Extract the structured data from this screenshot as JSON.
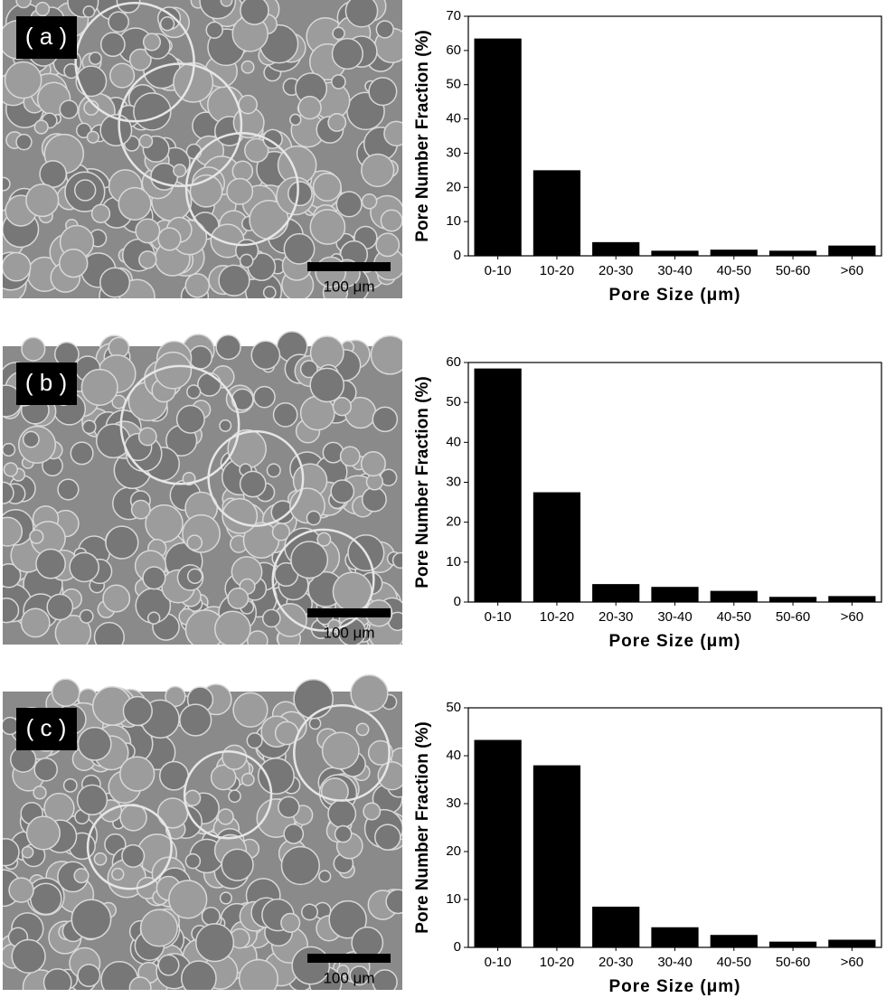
{
  "chart_data": [
    {
      "type": "bar",
      "panel_label": "( a )",
      "scale_bar_label": "100 μm",
      "xlabel": "Pore Size (μm)",
      "ylabel": "Pore Number Fraction (%)",
      "categories": [
        "0-10",
        "10-20",
        "20-30",
        "30-40",
        "40-50",
        "50-60",
        ">60"
      ],
      "values": [
        63.5,
        25,
        4,
        1.5,
        1.8,
        1.5,
        3
      ],
      "color": "#000000",
      "ylim": [
        0,
        70
      ],
      "yticks": [
        0,
        10,
        20,
        30,
        40,
        50,
        60,
        70
      ]
    },
    {
      "type": "bar",
      "panel_label": "( b )",
      "scale_bar_label": "100 μm",
      "xlabel": "Pore Size (μm)",
      "ylabel": "Pore Number Fraction (%)",
      "categories": [
        "0-10",
        "10-20",
        "20-30",
        "30-40",
        "40-50",
        "50-60",
        ">60"
      ],
      "values": [
        58.5,
        27.5,
        4.5,
        3.8,
        2.8,
        1.3,
        1.5
      ],
      "color": "#000000",
      "ylim": [
        0,
        60
      ],
      "yticks": [
        0,
        10,
        20,
        30,
        40,
        50,
        60
      ]
    },
    {
      "type": "bar",
      "panel_label": "( c )",
      "scale_bar_label": "100 μm",
      "xlabel": "Pore Size (μm)",
      "ylabel": "Pore Number Fraction (%)",
      "categories": [
        "0-10",
        "10-20",
        "20-30",
        "30-40",
        "40-50",
        "50-60",
        ">60"
      ],
      "values": [
        43.3,
        38,
        8.5,
        4.2,
        2.6,
        1.2,
        1.6
      ],
      "color": "#000000",
      "ylim": [
        0,
        50
      ],
      "yticks": [
        0,
        10,
        20,
        30,
        40,
        50
      ]
    }
  ]
}
